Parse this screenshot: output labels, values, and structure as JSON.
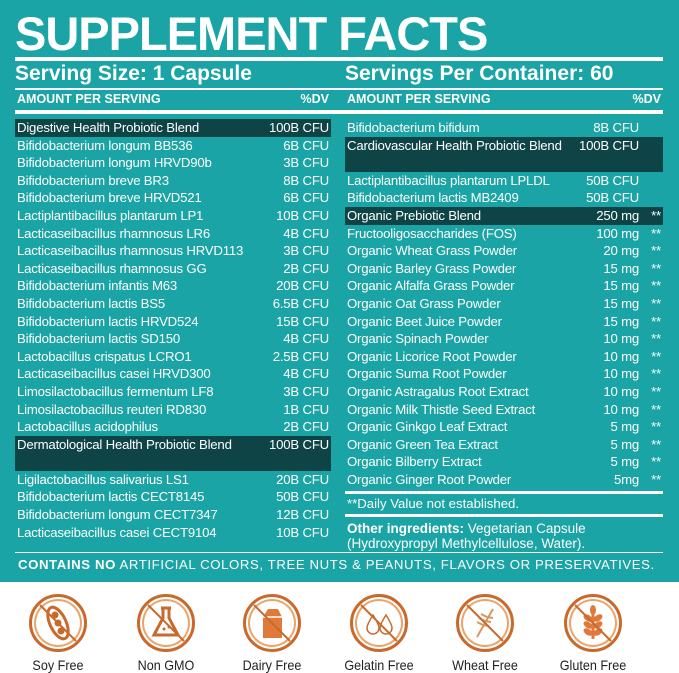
{
  "title": "SUPPLEMENT FACTS",
  "serving_size": "Serving Size: 1 Capsule",
  "servings_per_container": "Servings Per Container: 60",
  "amount_header": "AMOUNT PER SERVING",
  "dv_header": "%DV",
  "left": [
    {
      "name": "Digestive Health Probiotic Blend",
      "amount": "100B CFU",
      "highlight": true
    },
    {
      "name": "Bifidobacterium longum BB536",
      "amount": "6B CFU"
    },
    {
      "name": "Bifidobacterium longum HRVD90b",
      "amount": "3B CFU"
    },
    {
      "name": "Bifidobacterium breve BR3",
      "amount": "8B CFU"
    },
    {
      "name": "Bifidobacterium breve HRVD521",
      "amount": "6B CFU"
    },
    {
      "name": "Lactiplantibacillus plantarum LP1",
      "amount": "10B CFU"
    },
    {
      "name": "Lacticaseibacillus rhamnosus LR6",
      "amount": "4B CFU"
    },
    {
      "name": "Lacticaseibacillus rhamnosus HRVD113",
      "amount": "3B CFU"
    },
    {
      "name": "Lacticaseibacillus rhamnosus GG",
      "amount": "2B CFU"
    },
    {
      "name": "Bifidobacterium infantis M63",
      "amount": "20B CFU"
    },
    {
      "name": "Bifidobacterium lactis BS5",
      "amount": "6.5B CFU"
    },
    {
      "name": "Bifidobacterium lactis HRVD524",
      "amount": "15B CFU"
    },
    {
      "name": "Bifidobacterium lactis SD150",
      "amount": "4B CFU"
    },
    {
      "name": "Lactobacillus crispatus LCRO1",
      "amount": "2.5B CFU"
    },
    {
      "name": "Lacticaseibacillus casei HRVD300",
      "amount": "4B CFU"
    },
    {
      "name": "Limosilactobacillus fermentum LF8",
      "amount": "3B CFU"
    },
    {
      "name": "Limosilactobacillus reuteri RD830",
      "amount": "1B CFU"
    },
    {
      "name": "Lactobacillus acidophilus",
      "amount": "2B CFU"
    },
    {
      "name": "Dermatological Health Probiotic Blend",
      "amount": "100B CFU",
      "highlight": true,
      "two": true
    },
    {
      "name": "Ligilactobacillus salivarius LS1",
      "amount": "20B CFU"
    },
    {
      "name": "Bifidobacterium lactis CECT8145",
      "amount": "50B CFU"
    },
    {
      "name": "Bifidobacterium longum CECT7347",
      "amount": "12B CFU"
    },
    {
      "name": "Lacticaseibacillus casei CECT9104",
      "amount": "10B CFU"
    }
  ],
  "right": [
    {
      "name": "Bifidobacterium bifidum",
      "amount": "8B CFU"
    },
    {
      "name": "Cardiovascular Health Probiotic Blend",
      "amount": "100B CFU",
      "highlight": true,
      "two": true
    },
    {
      "name": "Lactiplantibacillus plantarum LPLDL",
      "amount": "50B CFU"
    },
    {
      "name": "Bifidobacterium lactis MB2409",
      "amount": "50B CFU"
    },
    {
      "name": "Organic Prebiotic Blend",
      "amount": "250 mg",
      "dv": "**",
      "highlight": true
    },
    {
      "name": "Fructooligosaccharides (FOS)",
      "amount": "100 mg",
      "dv": "**"
    },
    {
      "name": "Organic Wheat Grass Powder",
      "amount": "20 mg",
      "dv": "**"
    },
    {
      "name": "Organic Barley Grass Powder",
      "amount": "15 mg",
      "dv": "**"
    },
    {
      "name": "Organic Alfalfa Grass Powder",
      "amount": "15 mg",
      "dv": "**"
    },
    {
      "name": "Organic Oat Grass Powder",
      "amount": "15 mg",
      "dv": "**"
    },
    {
      "name": "Organic Beet Juice Powder",
      "amount": "15 mg",
      "dv": "**"
    },
    {
      "name": "Organic Spinach Powder",
      "amount": "10 mg",
      "dv": "**"
    },
    {
      "name": "Organic Licorice Root Powder",
      "amount": "10 mg",
      "dv": "**"
    },
    {
      "name": "Organic Suma Root Powder",
      "amount": "10 mg",
      "dv": "**"
    },
    {
      "name": "Organic Astragalus Root Extract",
      "amount": "10 mg",
      "dv": "**"
    },
    {
      "name": "Organic Milk Thistle Seed Extract",
      "amount": "10 mg",
      "dv": "**"
    },
    {
      "name": "Organic Ginkgo Leaf Extract",
      "amount": "5 mg",
      "dv": "**"
    },
    {
      "name": "Organic Green Tea Extract",
      "amount": "5 mg",
      "dv": "**"
    },
    {
      "name": "Organic Bilberry Extract",
      "amount": "5 mg",
      "dv": "**"
    },
    {
      "name": "Organic Ginger Root Powder",
      "amount": "5mg",
      "dv": "**"
    }
  ],
  "dv_note": "**Daily Value not established.",
  "other_label": "Other ingredients:",
  "other_text": "Vegetarian Capsule (Hydroxypropyl Methylcellulose, Water).",
  "contains_bold": "CONTAINS NO",
  "contains_rest": " ARTIFICIAL COLORS, TREE NUTS & PEANUTS, FLAVORS OR PRESERVATIVES.",
  "badges": [
    {
      "label": "Soy Free",
      "icon": "soybean-icon"
    },
    {
      "label": "Non GMO",
      "icon": "flask-icon"
    },
    {
      "label": "Dairy Free",
      "icon": "milk-carton-icon"
    },
    {
      "label": "Gelatin Free",
      "icon": "drops-icon"
    },
    {
      "label": "Wheat Free",
      "icon": "wheat-icon"
    },
    {
      "label": "Gluten Free",
      "icon": "grain-icon"
    }
  ],
  "colors": {
    "panel": "#1ba4a5",
    "highlight": "#0f4447",
    "badge": "#c96a2c"
  }
}
